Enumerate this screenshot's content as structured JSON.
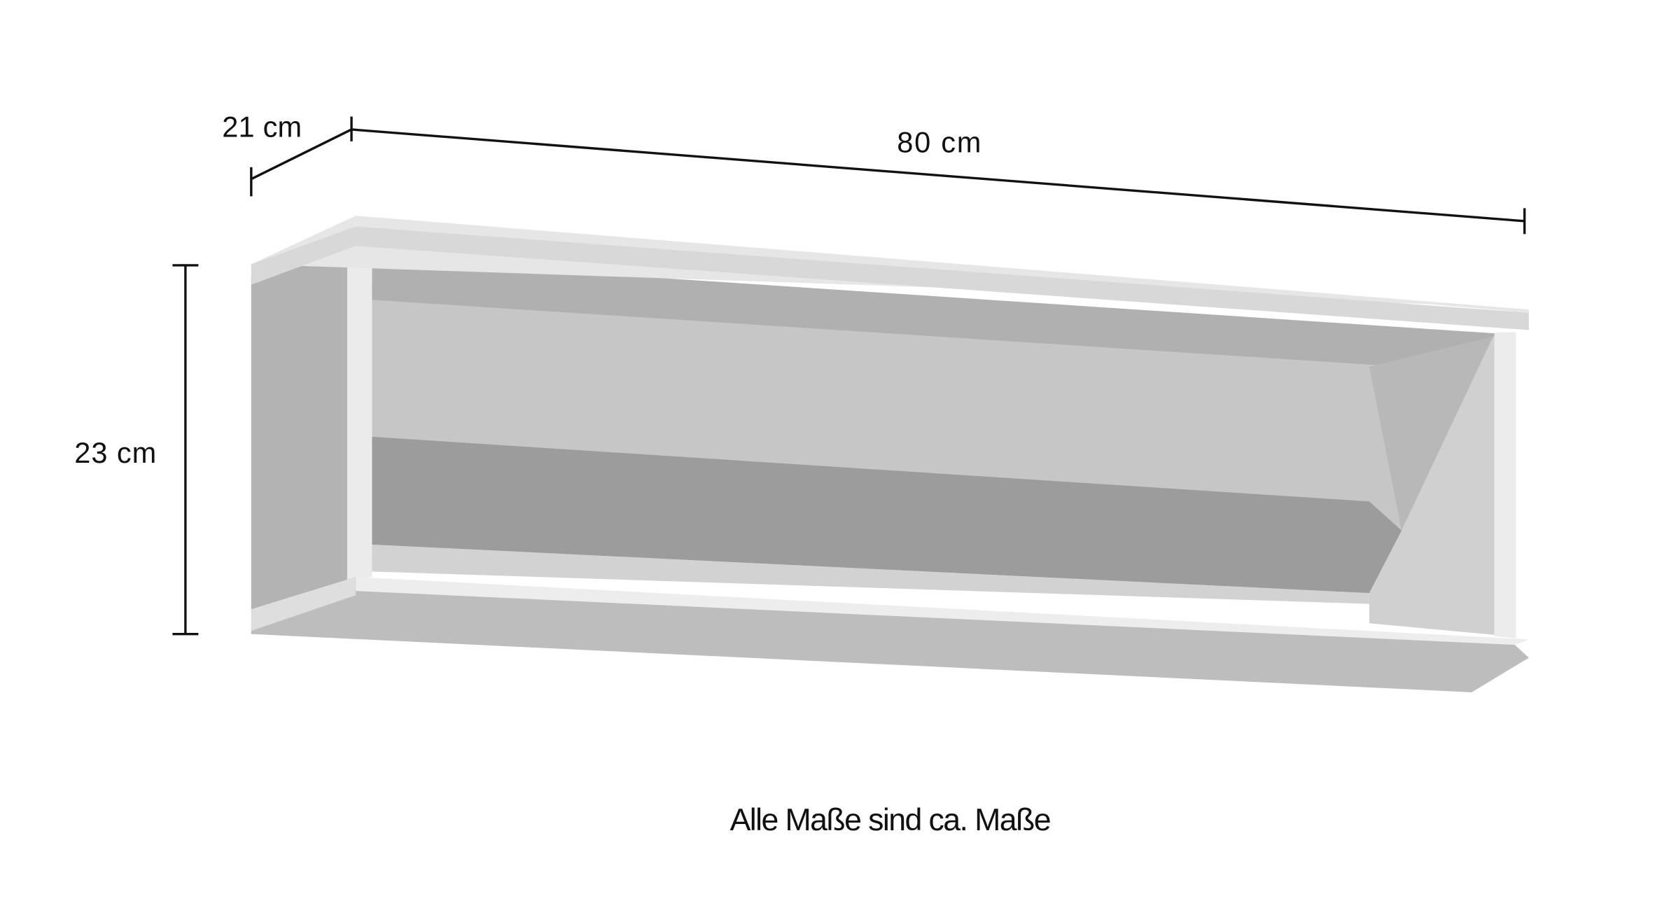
{
  "dimensions": {
    "depth": "21 cm",
    "width": "80 cm",
    "height": "23 cm"
  },
  "caption": "Alle Maße sind ca. Maße",
  "colors": {
    "line": "#111111",
    "panel_light": "#e4e4e4",
    "panel_mid": "#c2c2c2",
    "panel_dark": "#9a9a9a"
  }
}
